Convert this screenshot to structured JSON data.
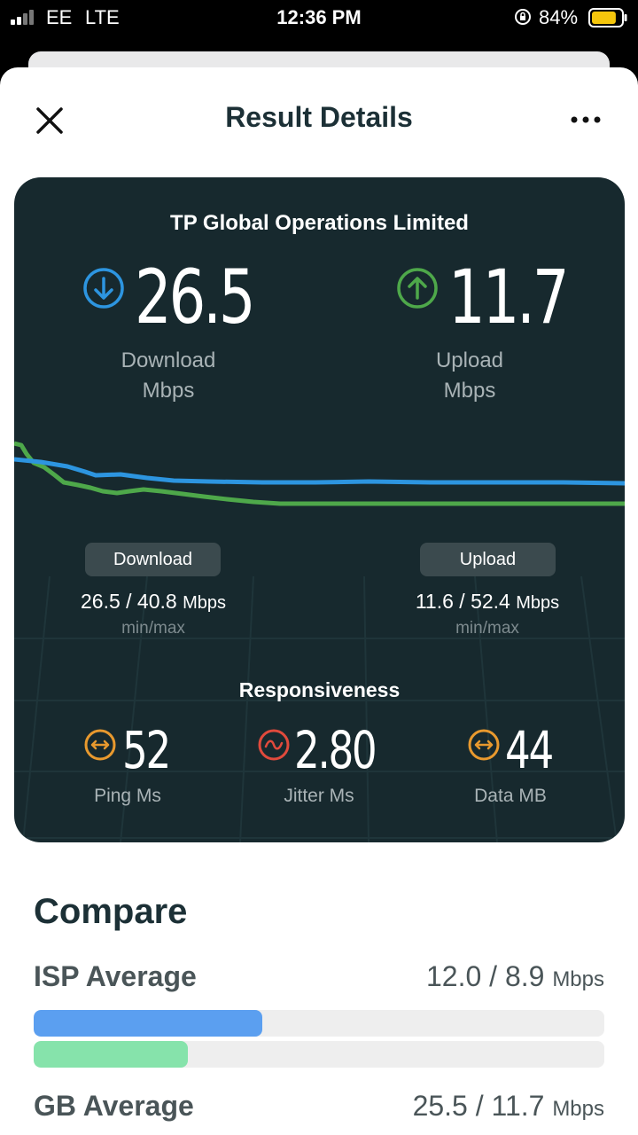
{
  "status_bar": {
    "carrier": "EE",
    "network": "LTE",
    "time": "12:36 PM",
    "battery_percent": "84%",
    "battery_level": 0.84,
    "icons": [
      "signal-icon",
      "orientation-lock-icon",
      "battery-icon"
    ]
  },
  "header": {
    "title": "Result Details",
    "close_icon": "close-icon",
    "more_icon": "more-icon"
  },
  "result": {
    "provider": "TP Global Operations Limited",
    "download": {
      "value": "26.5",
      "label_line1": "Download",
      "label_line2": "Mbps",
      "icon": "download-arrow-icon",
      "color": "#2d95e0"
    },
    "upload": {
      "value": "11.7",
      "label_line1": "Upload",
      "label_line2": "Mbps",
      "icon": "upload-arrow-icon",
      "color": "#4ea84a"
    },
    "graph": {
      "download_color": "#2d95e0",
      "upload_color": "#4ea84a"
    },
    "download_stats": {
      "pill": "Download",
      "value": "26.5 / 40.8",
      "unit": "Mbps",
      "caption": "min/max"
    },
    "upload_stats": {
      "pill": "Upload",
      "value": "11.6 / 52.4",
      "unit": "Mbps",
      "caption": "min/max"
    },
    "responsiveness": {
      "title": "Responsiveness",
      "ping": {
        "value": "52",
        "label": "Ping Ms",
        "icon": "ping-icon",
        "color": "#e8992e"
      },
      "jitter": {
        "value": "2.80",
        "label": "Jitter Ms",
        "icon": "jitter-icon",
        "color": "#e04a3c"
      },
      "data": {
        "value": "44",
        "label": "Data MB",
        "icon": "data-icon",
        "color": "#e8992e"
      }
    }
  },
  "compare": {
    "title": "Compare",
    "rows": [
      {
        "label": "ISP Average",
        "value": "12.0 / 8.9",
        "unit": "Mbps",
        "download_fraction": 0.4,
        "upload_fraction": 0.27
      },
      {
        "label": "GB Average",
        "value": "25.5 / 11.7",
        "unit": "Mbps"
      }
    ],
    "download_bar_color": "#5b9ff0",
    "upload_bar_color": "#86e3ab"
  }
}
